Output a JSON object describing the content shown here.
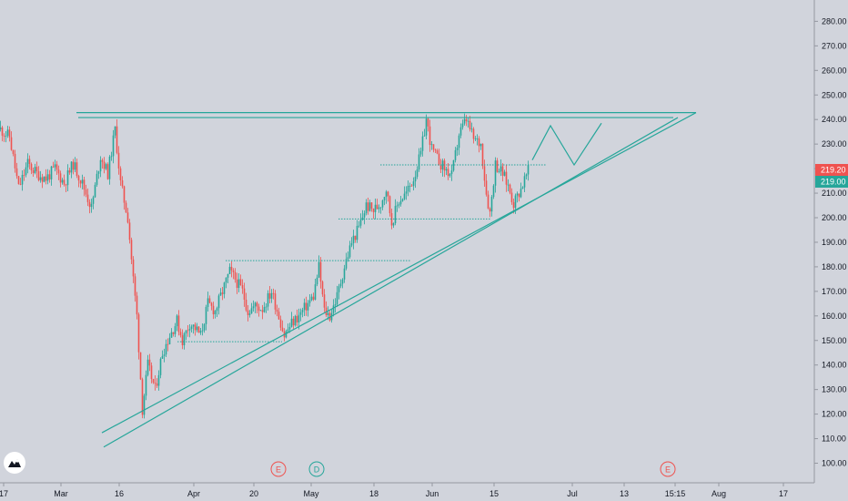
{
  "chart_data": {
    "type": "candlestick",
    "title": "",
    "xlabel": "",
    "ylabel": "",
    "ylim": [
      95,
      286
    ],
    "grid": false,
    "price_axis_labels": [
      "280.00",
      "270.00",
      "260.00",
      "250.00",
      "240.00",
      "230.00",
      "220.00",
      "210.00",
      "200.00",
      "190.00",
      "180.00",
      "170.00",
      "160.00",
      "150.00",
      "140.00",
      "130.00",
      "120.00",
      "110.00",
      "100.00"
    ],
    "price_axis_values": [
      280,
      270,
      260,
      250,
      240,
      230,
      220,
      210,
      200,
      190,
      180,
      170,
      160,
      150,
      140,
      130,
      120,
      110,
      100
    ],
    "time_axis_labels": [
      "17",
      "Mar",
      "16",
      "Apr",
      "20",
      "May",
      "18",
      "Jun",
      "15",
      "Jul",
      "13",
      "15:15",
      "Aug",
      "17"
    ],
    "price_tags": [
      {
        "label": "219.20",
        "value": 219.2,
        "color": "#ef5350"
      },
      {
        "label": "219.00",
        "value": 219.0,
        "color": "#26a69a"
      }
    ],
    "price_path": [
      {
        "x": 0,
        "p": 236
      },
      {
        "x": 10,
        "p": 233
      },
      {
        "x": 20,
        "p": 212
      },
      {
        "x": 30,
        "p": 222
      },
      {
        "x": 40,
        "p": 218
      },
      {
        "x": 50,
        "p": 216
      },
      {
        "x": 60,
        "p": 220
      },
      {
        "x": 70,
        "p": 214
      },
      {
        "x": 80,
        "p": 222
      },
      {
        "x": 90,
        "p": 214
      },
      {
        "x": 100,
        "p": 204
      },
      {
        "x": 110,
        "p": 225
      },
      {
        "x": 118,
        "p": 218
      },
      {
        "x": 126,
        "p": 236
      },
      {
        "x": 132,
        "p": 214
      },
      {
        "x": 140,
        "p": 200
      },
      {
        "x": 146,
        "p": 175
      },
      {
        "x": 150,
        "p": 160
      },
      {
        "x": 156,
        "p": 122
      },
      {
        "x": 162,
        "p": 140
      },
      {
        "x": 170,
        "p": 130
      },
      {
        "x": 178,
        "p": 145
      },
      {
        "x": 186,
        "p": 152
      },
      {
        "x": 194,
        "p": 158
      },
      {
        "x": 200,
        "p": 150
      },
      {
        "x": 208,
        "p": 157
      },
      {
        "x": 214,
        "p": 155
      },
      {
        "x": 220,
        "p": 152
      },
      {
        "x": 228,
        "p": 165
      },
      {
        "x": 236,
        "p": 162
      },
      {
        "x": 244,
        "p": 170
      },
      {
        "x": 252,
        "p": 178
      },
      {
        "x": 258,
        "p": 175
      },
      {
        "x": 266,
        "p": 170
      },
      {
        "x": 272,
        "p": 162
      },
      {
        "x": 280,
        "p": 164
      },
      {
        "x": 288,
        "p": 163
      },
      {
        "x": 298,
        "p": 170
      },
      {
        "x": 306,
        "p": 160
      },
      {
        "x": 312,
        "p": 152
      },
      {
        "x": 320,
        "p": 157
      },
      {
        "x": 328,
        "p": 160
      },
      {
        "x": 336,
        "p": 164
      },
      {
        "x": 344,
        "p": 168
      },
      {
        "x": 350,
        "p": 180
      },
      {
        "x": 356,
        "p": 162
      },
      {
        "x": 362,
        "p": 160
      },
      {
        "x": 370,
        "p": 168
      },
      {
        "x": 378,
        "p": 180
      },
      {
        "x": 386,
        "p": 190
      },
      {
        "x": 394,
        "p": 196
      },
      {
        "x": 402,
        "p": 205
      },
      {
        "x": 410,
        "p": 203
      },
      {
        "x": 418,
        "p": 206
      },
      {
        "x": 424,
        "p": 212
      },
      {
        "x": 430,
        "p": 198
      },
      {
        "x": 438,
        "p": 207
      },
      {
        "x": 446,
        "p": 210
      },
      {
        "x": 454,
        "p": 216
      },
      {
        "x": 462,
        "p": 226
      },
      {
        "x": 468,
        "p": 240
      },
      {
        "x": 474,
        "p": 228
      },
      {
        "x": 480,
        "p": 224
      },
      {
        "x": 488,
        "p": 220
      },
      {
        "x": 496,
        "p": 217
      },
      {
        "x": 504,
        "p": 234
      },
      {
        "x": 512,
        "p": 240
      },
      {
        "x": 520,
        "p": 232
      },
      {
        "x": 528,
        "p": 230
      },
      {
        "x": 534,
        "p": 210
      },
      {
        "x": 538,
        "p": 202
      },
      {
        "x": 544,
        "p": 222
      },
      {
        "x": 552,
        "p": 218
      },
      {
        "x": 558,
        "p": 213
      },
      {
        "x": 564,
        "p": 206
      },
      {
        "x": 572,
        "p": 212
      },
      {
        "x": 580,
        "p": 219
      }
    ],
    "drawings": {
      "upper_lines": [
        {
          "x1": 84,
          "p1": 242.8,
          "x2": 765,
          "p2": 242.8
        },
        {
          "x1": 86,
          "p1": 240.8,
          "x2": 740,
          "p2": 240.8
        }
      ],
      "lower_lines": [
        {
          "x1": 112,
          "p1": 112.4,
          "x2": 765,
          "p2": 242.8
        },
        {
          "x1": 114,
          "p1": 106.6,
          "x2": 745,
          "p2": 240.8
        }
      ],
      "dotted_levels": [
        {
          "x1": 195,
          "x2": 310,
          "p": 149.5
        },
        {
          "x1": 248,
          "x2": 452,
          "p": 182.5
        },
        {
          "x1": 372,
          "x2": 540,
          "p": 199.5
        },
        {
          "x1": 418,
          "x2": 600,
          "p": 221.5
        }
      ],
      "projection": [
        {
          "x": 585,
          "p": 223.5
        },
        {
          "x": 605,
          "p": 237.5
        },
        {
          "x": 631,
          "p": 221.5
        },
        {
          "x": 661,
          "p": 238.5
        }
      ]
    },
    "event_markers": [
      {
        "label": "E",
        "x": 306,
        "color": "#ef5350"
      },
      {
        "label": "D",
        "x": 348,
        "color": "#26a69a"
      },
      {
        "label": "E",
        "x": 734,
        "color": "#ef5350"
      }
    ],
    "colors": {
      "up": "#26a69a",
      "down": "#ef5350",
      "line": "#26a69a",
      "background": "#d1d4dc"
    }
  }
}
